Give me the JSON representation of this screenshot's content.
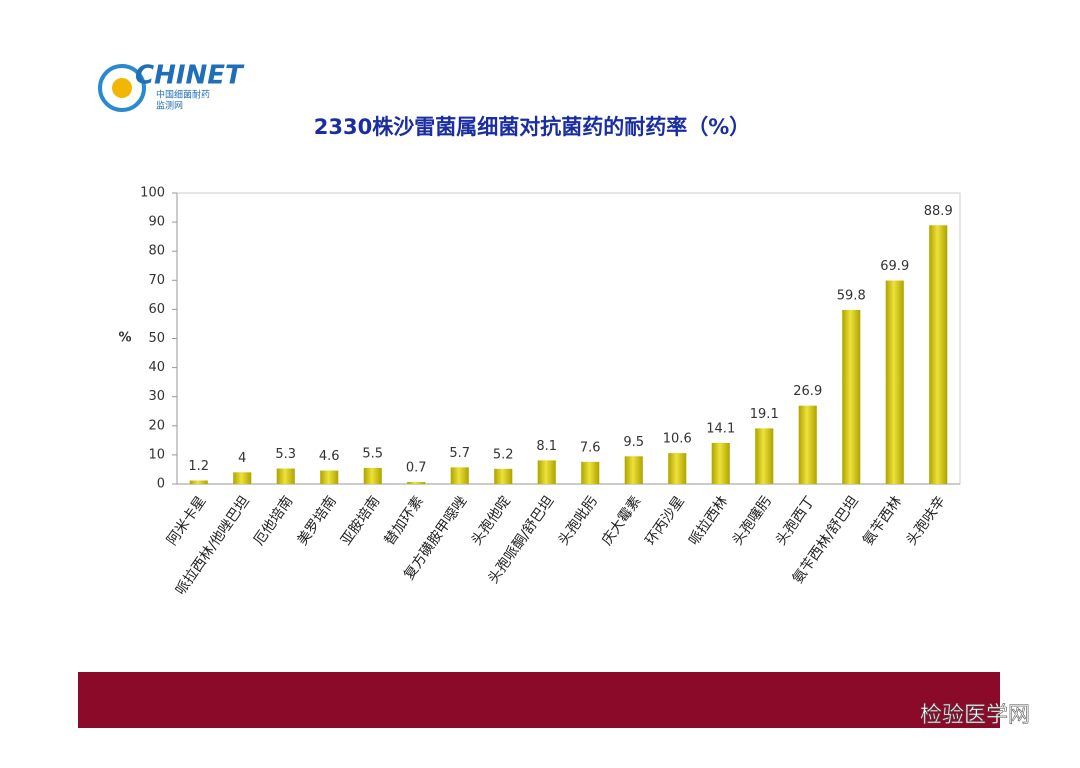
{
  "logo": {
    "name": "CHINET",
    "line1": "中国细菌耐药",
    "line2": "监测网"
  },
  "chart_data": {
    "type": "bar",
    "title": "2330株沙雷菌属细菌对抗菌药的耐药率（%）",
    "y_label": "%",
    "categories": [
      "阿米卡星",
      "哌拉西林/他唑巴坦",
      "厄他培南",
      "美罗培南",
      "亚胺培南",
      "替加环素",
      "复方磺胺甲噁唑",
      "头孢他啶",
      "头孢哌酮/舒巴坦",
      "头孢吡肟",
      "庆大霉素",
      "环丙沙星",
      "哌拉西林",
      "头孢噻肟",
      "头孢西丁",
      "氨苄西林/舒巴坦",
      "氨苄西林",
      "头孢呋辛"
    ],
    "values": [
      1.2,
      4,
      5.3,
      4.6,
      5.5,
      0.7,
      5.7,
      5.2,
      8.1,
      7.6,
      9.5,
      10.6,
      14.1,
      19.1,
      26.9,
      59.8,
      69.9,
      88.9
    ],
    "color": "#d9cc00",
    "ylim": [
      0,
      100
    ],
    "yticks": [
      0,
      10,
      20,
      30,
      40,
      50,
      60,
      70,
      80,
      90,
      100
    ],
    "grid": false
  },
  "watermark": "检验医学网"
}
